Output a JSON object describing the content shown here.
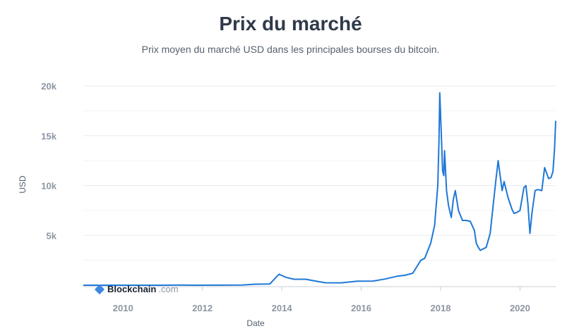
{
  "header": {
    "title": "Prix du marché",
    "subtitle": "Prix moyen du marché USD dans les principales bourses du bitcoin."
  },
  "brand": {
    "name": "Blockchain",
    "domain": ".com"
  },
  "colors": {
    "line": "#1f78d6",
    "text": "#2f3a4a",
    "tick": "#8d96a3",
    "grid": "#e8ecf0"
  },
  "chart_data": {
    "type": "line",
    "title": "Prix du marché",
    "subtitle": "Prix moyen du marché USD dans les principales bourses du bitcoin.",
    "xlabel": "Date",
    "ylabel": "USD",
    "xlim": [
      2009.0,
      2020.9
    ],
    "ylim": [
      0,
      20000
    ],
    "x_ticks": [
      "2010",
      "2012",
      "2014",
      "2016",
      "2018",
      "2020"
    ],
    "y_ticks": [
      "5k",
      "10k",
      "15k",
      "20k"
    ],
    "grid": true,
    "series": [
      {
        "x": [
          2009.0,
          2010.5,
          2011.0,
          2011.45,
          2011.8,
          2012.5,
          2013.0,
          2013.3,
          2013.7,
          2013.88,
          2013.93,
          2014.1,
          2014.3,
          2014.6,
          2014.9,
          2015.1,
          2015.5,
          2015.9,
          2016.3,
          2016.6,
          2016.9,
          2017.1,
          2017.3,
          2017.5,
          2017.6,
          2017.75,
          2017.85,
          2017.93,
          2017.96,
          2017.98,
          2018.02,
          2018.05,
          2018.08,
          2018.1,
          2018.15,
          2018.2,
          2018.27,
          2018.32,
          2018.37,
          2018.45,
          2018.55,
          2018.65,
          2018.75,
          2018.85,
          2018.9,
          2018.95,
          2019.0,
          2019.15,
          2019.25,
          2019.33,
          2019.4,
          2019.45,
          2019.5,
          2019.55,
          2019.6,
          2019.7,
          2019.8,
          2019.85,
          2019.92,
          2020.0,
          2020.1,
          2020.15,
          2020.2,
          2020.25,
          2020.3,
          2020.38,
          2020.45,
          2020.55,
          2020.62,
          2020.65,
          2020.72,
          2020.78,
          2020.83,
          2020.87,
          2020.9
        ],
        "values": [
          0,
          0,
          1,
          15,
          3,
          10,
          20,
          100,
          130,
          900,
          1100,
          800,
          600,
          600,
          380,
          250,
          240,
          400,
          420,
          620,
          900,
          1000,
          1200,
          2500,
          2700,
          4200,
          6000,
          10000,
          14500,
          19300,
          15000,
          11500,
          11000,
          13500,
          9500,
          8000,
          6800,
          8600,
          9500,
          7500,
          6500,
          6500,
          6400,
          5500,
          4200,
          3800,
          3500,
          3800,
          5200,
          8200,
          10800,
          12500,
          11000,
          9500,
          10400,
          8800,
          7600,
          7200,
          7300,
          7500,
          9800,
          10000,
          8200,
          5200,
          7200,
          9500,
          9600,
          9500,
          11800,
          11500,
          10700,
          10800,
          11400,
          13600,
          16500
        ]
      }
    ]
  }
}
